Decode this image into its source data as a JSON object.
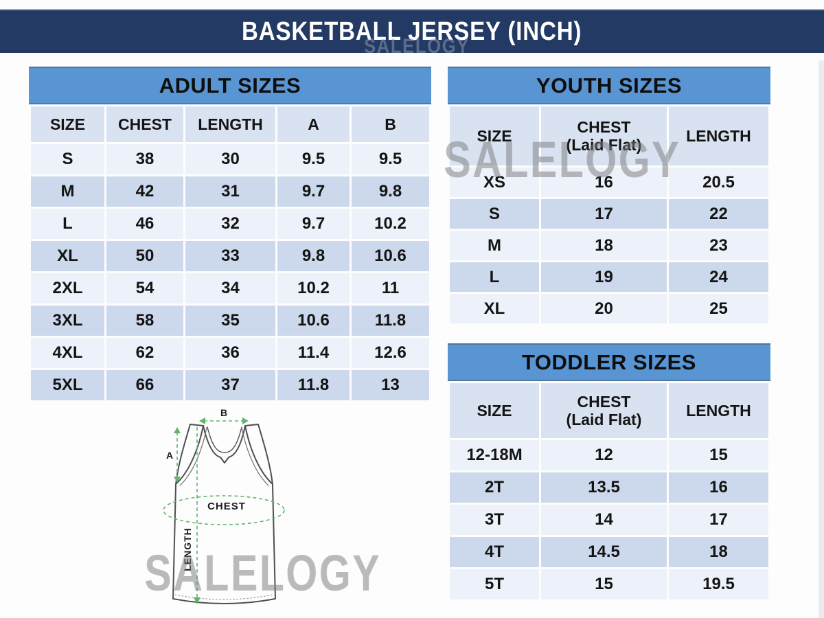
{
  "header": {
    "title": "BASKETBALL JERSEY (INCH)"
  },
  "watermark": {
    "text": "SALELOGY"
  },
  "tables": {
    "adult": {
      "title": "ADULT SIZES",
      "columns": [
        "SIZE",
        "CHEST",
        "LENGTH",
        "A",
        "B"
      ],
      "rows": [
        [
          "S",
          "38",
          "30",
          "9.5",
          "9.5"
        ],
        [
          "M",
          "42",
          "31",
          "9.7",
          "9.8"
        ],
        [
          "L",
          "46",
          "32",
          "9.7",
          "10.2"
        ],
        [
          "XL",
          "50",
          "33",
          "9.8",
          "10.6"
        ],
        [
          "2XL",
          "54",
          "34",
          "10.2",
          "11"
        ],
        [
          "3XL",
          "58",
          "35",
          "10.6",
          "11.8"
        ],
        [
          "4XL",
          "62",
          "36",
          "11.4",
          "12.6"
        ],
        [
          "5XL",
          "66",
          "37",
          "11.8",
          "13"
        ]
      ]
    },
    "youth": {
      "title": "YOUTH SIZES",
      "columns": [
        "SIZE",
        "CHEST\n(Laid Flat)",
        "LENGTH"
      ],
      "rows": [
        [
          "XS",
          "16",
          "20.5"
        ],
        [
          "S",
          "17",
          "22"
        ],
        [
          "M",
          "18",
          "23"
        ],
        [
          "L",
          "19",
          "24"
        ],
        [
          "XL",
          "20",
          "25"
        ]
      ]
    },
    "toddler": {
      "title": "TODDLER SIZES",
      "columns": [
        "SIZE",
        "CHEST\n(Laid Flat)",
        "LENGTH"
      ],
      "rows": [
        [
          "12-18M",
          "12",
          "15"
        ],
        [
          "2T",
          "13.5",
          "16"
        ],
        [
          "3T",
          "14",
          "17"
        ],
        [
          "4T",
          "14.5",
          "18"
        ],
        [
          "5T",
          "15",
          "19.5"
        ]
      ]
    }
  },
  "diagram": {
    "labels": {
      "a": "A",
      "b": "B",
      "chest": "CHEST",
      "length": "LENGTH"
    }
  },
  "colors": {
    "title_bar_navy": "#223a64",
    "section_header_blue": "#5995d3",
    "column_header_bg": "#d9e2f1",
    "row_light": "#edf1f9",
    "row_dark": "#ccd8eb",
    "measure_green": "#5fb56d",
    "watermark_gray": "#c9c9c9"
  }
}
